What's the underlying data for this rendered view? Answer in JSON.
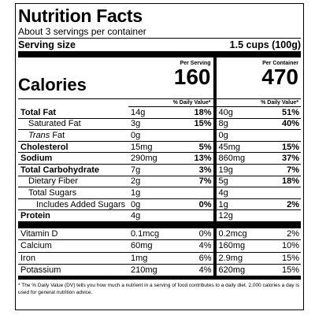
{
  "title": "Nutrition Facts",
  "servings": "About 3 servings per container",
  "serving_size": {
    "label": "Serving size",
    "value": "1.5 cups (100g)"
  },
  "calories": {
    "label": "Calories",
    "columns": [
      {
        "heading": "Per Serving",
        "value": "160"
      },
      {
        "heading": "Per Container",
        "value": "470"
      }
    ]
  },
  "dv_header": "% Daily Value*",
  "nutrients": [
    {
      "name": "Total Fat",
      "level": 0,
      "bold": true,
      "cells": [
        [
          "14g",
          "18%"
        ],
        [
          "40g",
          "51%"
        ]
      ]
    },
    {
      "name": "Saturated Fat",
      "level": 1,
      "bold": false,
      "cells": [
        [
          "3g",
          "15%"
        ],
        [
          "8g",
          "40%"
        ]
      ]
    },
    {
      "name_italic": "Trans",
      "name": "Fat",
      "level": 1,
      "bold": false,
      "cells": [
        [
          "0g"
        ],
        [
          "0g"
        ]
      ]
    },
    {
      "name": "Cholesterol",
      "level": 0,
      "bold": true,
      "cells": [
        [
          "15mg",
          "5%"
        ],
        [
          "45mg",
          "15%"
        ]
      ]
    },
    {
      "name": "Sodium",
      "level": 0,
      "bold": true,
      "cells": [
        [
          "290mg",
          "13%"
        ],
        [
          "860mg",
          "37%"
        ]
      ]
    },
    {
      "name": "Total Carbohydrate",
      "level": 0,
      "bold": true,
      "cells": [
        [
          "7g",
          "3%"
        ],
        [
          "19g",
          "7%"
        ]
      ]
    },
    {
      "name": "Dietary Fiber",
      "level": 1,
      "bold": false,
      "cells": [
        [
          "2g",
          "7%"
        ],
        [
          "5g",
          "18%"
        ]
      ]
    },
    {
      "name": "Total Sugars",
      "level": 1,
      "bold": false,
      "cells": [
        [
          "1g"
        ],
        [
          "4g"
        ]
      ]
    },
    {
      "name": "Includes Added Sugars",
      "level": 2,
      "bold": false,
      "cells": [
        [
          "0g",
          "0%"
        ],
        [
          "1g",
          "2%"
        ]
      ]
    },
    {
      "name": "Protein",
      "level": 0,
      "bold": true,
      "cells": [
        [
          "4g"
        ],
        [
          "12g"
        ]
      ]
    }
  ],
  "vitamins": [
    {
      "name": "Vitamin D",
      "cells": [
        [
          "0.1mcg",
          "0%"
        ],
        [
          "0.2mcg",
          "2%"
        ]
      ]
    },
    {
      "name": "Calcium",
      "cells": [
        [
          "60mg",
          "4%"
        ],
        [
          "160mg",
          "10%"
        ]
      ]
    },
    {
      "name": "Iron",
      "cells": [
        [
          "1mg",
          "6%"
        ],
        [
          "2.9mg",
          "15%"
        ]
      ]
    },
    {
      "name": "Potassium",
      "cells": [
        [
          "210mg",
          "4%"
        ],
        [
          "620mg",
          "15%"
        ]
      ]
    }
  ],
  "footnote": "* The % Daily Value (DV) tells you how much a nutrient in a serving of food contributes to a daily diet. 2,000 calories a day is used for general nutrition advice."
}
